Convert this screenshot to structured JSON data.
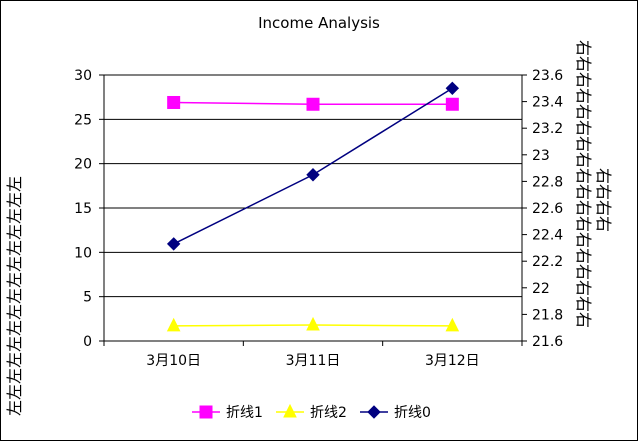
{
  "chart_data": {
    "type": "line",
    "title": "Income Analysis",
    "categories": [
      "3月10日",
      "3月11日",
      "3月12日"
    ],
    "series": [
      {
        "name": "折线1",
        "axis": "left",
        "color": "#FF00FF",
        "marker": "square",
        "values": [
          26.9,
          26.7,
          26.7
        ]
      },
      {
        "name": "折线2",
        "axis": "left",
        "color": "#FFFF00",
        "marker": "triangle",
        "values": [
          1.7,
          1.8,
          1.7
        ]
      },
      {
        "name": "折线0",
        "axis": "right",
        "color": "#000080",
        "marker": "diamond",
        "values": [
          22.33,
          22.85,
          23.5
        ]
      }
    ],
    "y_left": {
      "label": "左左左左左左左左左左左左左左左",
      "ylim": [
        0,
        30
      ],
      "ticks": [
        "0",
        "5",
        "10",
        "15",
        "20",
        "25",
        "30"
      ]
    },
    "y_right": {
      "label": "右右右右右右右右右右右右右右右右右右右右右右",
      "ylim": [
        21.6,
        23.6
      ],
      "ticks": [
        "21.6",
        "21.8",
        "22",
        "22.2",
        "22.4",
        "22.6",
        "22.8",
        "23",
        "23.2",
        "23.4",
        "23.6"
      ]
    },
    "grid": "horizontal",
    "legend_position": "bottom"
  }
}
